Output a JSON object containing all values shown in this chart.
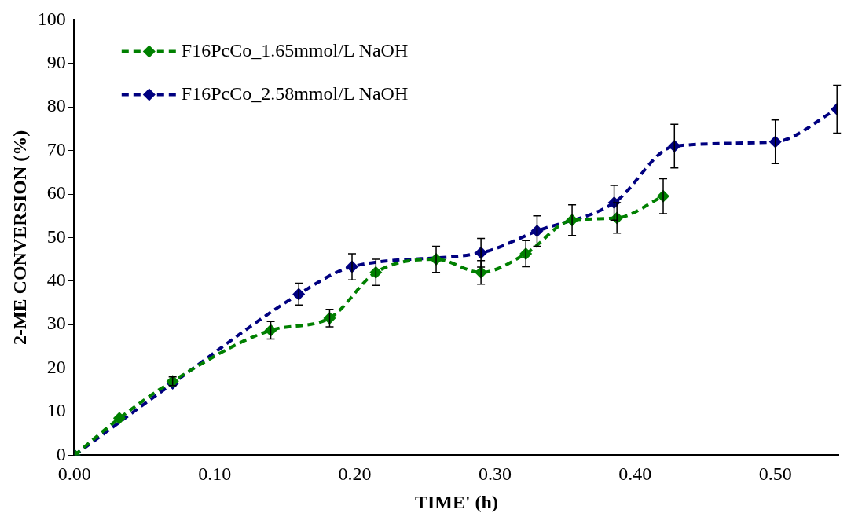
{
  "chart_data": {
    "type": "line",
    "xlabel": "TIME' (h)",
    "ylabel": "2-ME CONVERSION (%)",
    "xlim": [
      0,
      0.545
    ],
    "ylim": [
      0,
      100
    ],
    "xticks": [
      {
        "value": 0,
        "label": "0.00"
      },
      {
        "value": 0.1,
        "label": "0.10"
      },
      {
        "value": 0.2,
        "label": "0.20"
      },
      {
        "value": 0.3,
        "label": "0.30"
      },
      {
        "value": 0.4,
        "label": "0.40"
      },
      {
        "value": 0.5,
        "label": "0.50"
      }
    ],
    "yticks": [
      0,
      10,
      20,
      30,
      40,
      50,
      60,
      70,
      80,
      90,
      100
    ],
    "grid": false,
    "legend": "top left",
    "marker": "diamond",
    "line_style": "dashed",
    "series": [
      {
        "name": "F16PcCo_1.65mmol/L NaOH",
        "color": "#008000",
        "x": [
          0,
          0.032,
          0.07,
          0.14,
          0.182,
          0.215,
          0.258,
          0.29,
          0.322,
          0.355,
          0.387,
          0.42
        ],
        "values": [
          0,
          8.5,
          17,
          28.7,
          31.5,
          42,
          45,
          42,
          46.3,
          54,
          54.5,
          59.5
        ],
        "errors": [
          null,
          null,
          1,
          2,
          2,
          3,
          3,
          2.7,
          3,
          3.5,
          3.5,
          4
        ]
      },
      {
        "name": "F16PcCo_2.58mmol/L NaOH",
        "color": "#000080",
        "x": [
          0,
          0.07,
          0.16,
          0.198,
          0.29,
          0.33,
          0.385,
          0.428,
          0.5,
          0.544
        ],
        "values": [
          0,
          16.5,
          37,
          43.3,
          46.5,
          51.5,
          58,
          71,
          72,
          79.5
        ],
        "errors": [
          null,
          null,
          2.5,
          3,
          3.3,
          3.5,
          4,
          5,
          5,
          5.5
        ]
      }
    ]
  }
}
